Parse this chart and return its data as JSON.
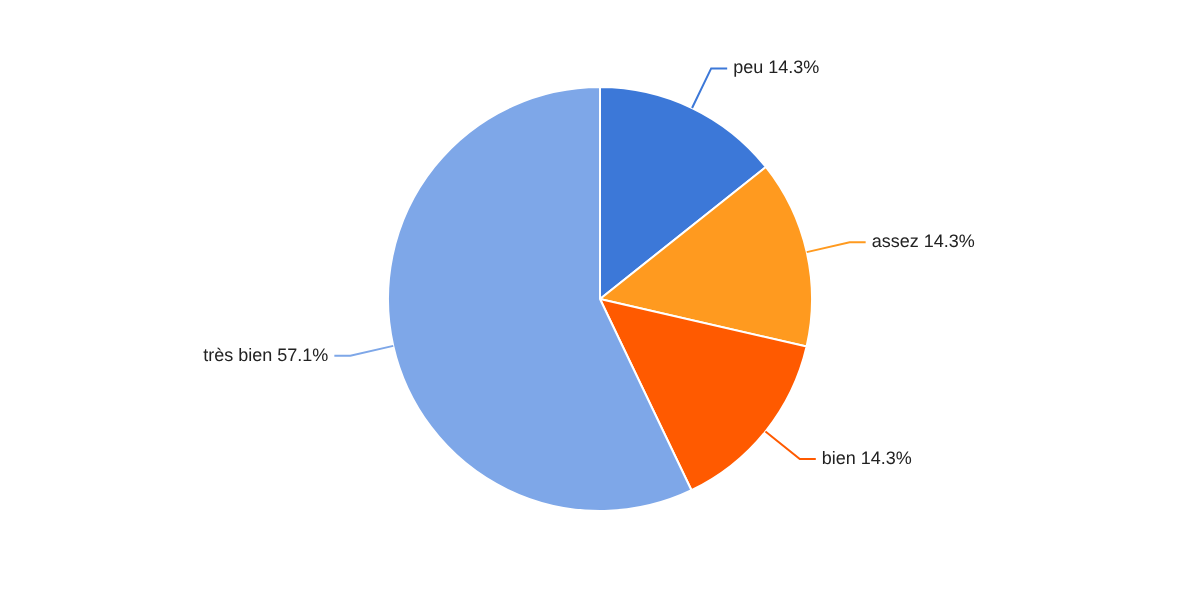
{
  "chart_data": {
    "type": "pie",
    "categories": [
      "peu",
      "assez",
      "bien",
      "très bien"
    ],
    "values": [
      14.3,
      14.3,
      14.3,
      57.1
    ],
    "value_labels": [
      "14.3%",
      "14.3%",
      "14.3%",
      "57.1%"
    ],
    "colors": [
      "#3c78d8",
      "#ff9a1f",
      "#ff5a00",
      "#7ea7e8"
    ],
    "legend": false
  }
}
